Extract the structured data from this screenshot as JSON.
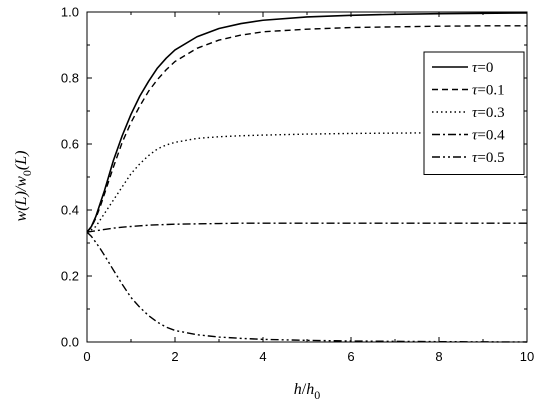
{
  "chart_data": {
    "type": "line",
    "title": "",
    "xlabel": {
      "main": "h",
      "slash": "/",
      "base": "h",
      "sub": "0"
    },
    "ylabel": {
      "part1": "w(L)/w",
      "sub": "0",
      "part2": "(L)"
    },
    "xlim": [
      0,
      10
    ],
    "ylim": [
      0,
      1.0
    ],
    "xticks": [
      "0",
      "2",
      "4",
      "6",
      "8",
      "10"
    ],
    "yticks": [
      "0.0",
      "0.2",
      "0.4",
      "0.6",
      "0.8",
      "1.0"
    ],
    "grid": false,
    "legend_position": "top-right",
    "x": [
      0,
      0.1,
      0.2,
      0.3,
      0.4,
      0.5,
      0.6,
      0.8,
      1.0,
      1.2,
      1.4,
      1.6,
      1.8,
      2.0,
      2.5,
      3.0,
      3.5,
      4.0,
      5.0,
      6.0,
      7.0,
      8.0,
      9.0,
      10.0
    ],
    "series": [
      {
        "name_prefix": "τ",
        "name_suffix": "=0",
        "dash": "solid",
        "values": [
          0.333,
          0.35,
          0.38,
          0.42,
          0.46,
          0.505,
          0.55,
          0.625,
          0.69,
          0.745,
          0.79,
          0.83,
          0.86,
          0.885,
          0.925,
          0.95,
          0.965,
          0.975,
          0.985,
          0.99,
          0.993,
          0.995,
          0.996,
          0.997
        ]
      },
      {
        "name_prefix": "τ",
        "name_suffix": "=0.1",
        "dash": "dash",
        "values": [
          0.333,
          0.348,
          0.375,
          0.41,
          0.45,
          0.49,
          0.53,
          0.605,
          0.665,
          0.715,
          0.76,
          0.795,
          0.825,
          0.85,
          0.89,
          0.915,
          0.93,
          0.94,
          0.948,
          0.953,
          0.955,
          0.957,
          0.958,
          0.958
        ]
      },
      {
        "name_prefix": "τ",
        "name_suffix": "=0.3",
        "dash": "dot",
        "values": [
          0.333,
          0.34,
          0.35,
          0.37,
          0.39,
          0.41,
          0.43,
          0.47,
          0.51,
          0.54,
          0.565,
          0.585,
          0.597,
          0.605,
          0.617,
          0.622,
          0.625,
          0.627,
          0.63,
          0.632,
          0.633,
          0.634,
          0.634,
          0.635
        ]
      },
      {
        "name_prefix": "τ",
        "name_suffix": "=0.4",
        "dash": "dashdot",
        "values": [
          0.333,
          0.335,
          0.337,
          0.339,
          0.341,
          0.343,
          0.345,
          0.348,
          0.35,
          0.352,
          0.354,
          0.355,
          0.356,
          0.357,
          0.358,
          0.359,
          0.36,
          0.36,
          0.36,
          0.36,
          0.36,
          0.36,
          0.36,
          0.36
        ]
      },
      {
        "name_prefix": "τ",
        "name_suffix": "=0.5",
        "dash": "dashdotdot",
        "values": [
          0.333,
          0.32,
          0.302,
          0.283,
          0.262,
          0.24,
          0.218,
          0.175,
          0.135,
          0.105,
          0.08,
          0.06,
          0.045,
          0.035,
          0.022,
          0.015,
          0.011,
          0.008,
          0.005,
          0.003,
          0.002,
          0.001,
          0.0005,
          0.0
        ]
      }
    ]
  }
}
